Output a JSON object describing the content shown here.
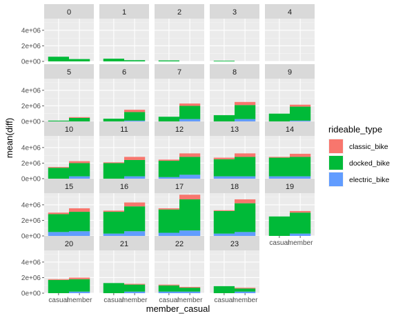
{
  "chart_data": {
    "type": "bar",
    "facet_by": "hour",
    "xlabel": "member_casual",
    "ylabel": "mean(diff)",
    "categories": [
      "casual",
      "member"
    ],
    "y_ticks": [
      0,
      2000000,
      4000000
    ],
    "y_tick_labels": [
      "0e+00",
      "2e+06",
      "4e+06"
    ],
    "ylim": [
      0,
      5500000
    ],
    "legend": {
      "title": "rideable_type",
      "position": "right",
      "items": [
        {
          "key": "classic_bike",
          "label": "classic_bike",
          "color": "#F8766D"
        },
        {
          "key": "docked_bike",
          "label": "docked_bike",
          "color": "#00BA38"
        },
        {
          "key": "electric_bike",
          "label": "electric_bike",
          "color": "#619CFF"
        }
      ]
    },
    "stack_order_bottom_to_top": [
      "electric_bike",
      "docked_bike",
      "classic_bike"
    ],
    "panels": [
      {
        "label": "0",
        "bars": {
          "casual": {
            "electric_bike": 0,
            "docked_bike": 600000,
            "classic_bike": 0
          },
          "member": {
            "electric_bike": 0,
            "docked_bike": 300000,
            "classic_bike": 0
          }
        }
      },
      {
        "label": "1",
        "bars": {
          "casual": {
            "electric_bike": 0,
            "docked_bike": 350000,
            "classic_bike": 0
          },
          "member": {
            "electric_bike": 0,
            "docked_bike": 150000,
            "classic_bike": 0
          }
        }
      },
      {
        "label": "2",
        "bars": {
          "casual": {
            "electric_bike": 0,
            "docked_bike": 120000,
            "classic_bike": 0
          },
          "member": {
            "electric_bike": 0,
            "docked_bike": 0,
            "classic_bike": 0
          }
        }
      },
      {
        "label": "3",
        "bars": {
          "casual": {
            "electric_bike": 0,
            "docked_bike": 80000,
            "classic_bike": 0
          },
          "member": {
            "electric_bike": 0,
            "docked_bike": 0,
            "classic_bike": 0
          }
        }
      },
      {
        "label": "4",
        "bars": {
          "casual": {
            "electric_bike": 0,
            "docked_bike": 0,
            "classic_bike": 0
          },
          "member": {
            "electric_bike": 0,
            "docked_bike": 0,
            "classic_bike": 0
          }
        }
      },
      {
        "label": "5",
        "bars": {
          "casual": {
            "electric_bike": 0,
            "docked_bike": 100000,
            "classic_bike": 0
          },
          "member": {
            "electric_bike": 0,
            "docked_bike": 450000,
            "classic_bike": 100000
          }
        }
      },
      {
        "label": "6",
        "bars": {
          "casual": {
            "electric_bike": 0,
            "docked_bike": 350000,
            "classic_bike": 0
          },
          "member": {
            "electric_bike": 100000,
            "docked_bike": 1100000,
            "classic_bike": 300000
          }
        }
      },
      {
        "label": "7",
        "bars": {
          "casual": {
            "electric_bike": 0,
            "docked_bike": 600000,
            "classic_bike": 0
          },
          "member": {
            "electric_bike": 300000,
            "docked_bike": 1700000,
            "classic_bike": 300000
          }
        }
      },
      {
        "label": "8",
        "bars": {
          "casual": {
            "electric_bike": 0,
            "docked_bike": 800000,
            "classic_bike": 0
          },
          "member": {
            "electric_bike": 300000,
            "docked_bike": 1800000,
            "classic_bike": 400000
          }
        }
      },
      {
        "label": "9",
        "bars": {
          "casual": {
            "electric_bike": 0,
            "docked_bike": 1000000,
            "classic_bike": 0
          },
          "member": {
            "electric_bike": 100000,
            "docked_bike": 1800000,
            "classic_bike": 250000
          }
        }
      },
      {
        "label": "10",
        "bars": {
          "casual": {
            "electric_bike": 0,
            "docked_bike": 1400000,
            "classic_bike": 100000
          },
          "member": {
            "electric_bike": 300000,
            "docked_bike": 1700000,
            "classic_bike": 250000
          }
        }
      },
      {
        "label": "11",
        "bars": {
          "casual": {
            "electric_bike": 0,
            "docked_bike": 2000000,
            "classic_bike": 100000
          },
          "member": {
            "electric_bike": 300000,
            "docked_bike": 2100000,
            "classic_bike": 400000
          }
        }
      },
      {
        "label": "12",
        "bars": {
          "casual": {
            "electric_bike": 200000,
            "docked_bike": 2100000,
            "classic_bike": 150000
          },
          "member": {
            "electric_bike": 500000,
            "docked_bike": 2300000,
            "classic_bike": 450000
          }
        }
      },
      {
        "label": "13",
        "bars": {
          "casual": {
            "electric_bike": 300000,
            "docked_bike": 2200000,
            "classic_bike": 200000
          },
          "member": {
            "electric_bike": 300000,
            "docked_bike": 2500000,
            "classic_bike": 450000
          }
        }
      },
      {
        "label": "14",
        "bars": {
          "casual": {
            "electric_bike": 300000,
            "docked_bike": 2400000,
            "classic_bike": 100000
          },
          "member": {
            "electric_bike": 300000,
            "docked_bike": 2500000,
            "classic_bike": 400000
          }
        }
      },
      {
        "label": "15",
        "bars": {
          "casual": {
            "electric_bike": 500000,
            "docked_bike": 2300000,
            "classic_bike": 200000
          },
          "member": {
            "electric_bike": 600000,
            "docked_bike": 2500000,
            "classic_bike": 450000
          }
        }
      },
      {
        "label": "16",
        "bars": {
          "casual": {
            "electric_bike": 300000,
            "docked_bike": 2800000,
            "classic_bike": 150000
          },
          "member": {
            "electric_bike": 600000,
            "docked_bike": 3200000,
            "classic_bike": 500000
          }
        }
      },
      {
        "label": "17",
        "bars": {
          "casual": {
            "electric_bike": 400000,
            "docked_bike": 3000000,
            "classic_bike": 150000
          },
          "member": {
            "electric_bike": 700000,
            "docked_bike": 4000000,
            "classic_bike": 600000
          }
        }
      },
      {
        "label": "18",
        "bars": {
          "casual": {
            "electric_bike": 300000,
            "docked_bike": 2900000,
            "classic_bike": 100000
          },
          "member": {
            "electric_bike": 500000,
            "docked_bike": 3700000,
            "classic_bike": 500000
          }
        }
      },
      {
        "label": "19",
        "bars": {
          "casual": {
            "electric_bike": 0,
            "docked_bike": 2500000,
            "classic_bike": 0
          },
          "member": {
            "electric_bike": 300000,
            "docked_bike": 2700000,
            "classic_bike": 200000
          }
        }
      },
      {
        "label": "20",
        "bars": {
          "casual": {
            "electric_bike": 0,
            "docked_bike": 1700000,
            "classic_bike": 100000
          },
          "member": {
            "electric_bike": 200000,
            "docked_bike": 1600000,
            "classic_bike": 200000
          }
        }
      },
      {
        "label": "21",
        "bars": {
          "casual": {
            "electric_bike": 0,
            "docked_bike": 1300000,
            "classic_bike": 0
          },
          "member": {
            "electric_bike": 200000,
            "docked_bike": 900000,
            "classic_bike": 100000
          }
        }
      },
      {
        "label": "22",
        "bars": {
          "casual": {
            "electric_bike": 200000,
            "docked_bike": 800000,
            "classic_bike": 100000
          },
          "member": {
            "electric_bike": 200000,
            "docked_bike": 500000,
            "classic_bike": 100000
          }
        }
      },
      {
        "label": "23",
        "bars": {
          "casual": {
            "electric_bike": 0,
            "docked_bike": 900000,
            "classic_bike": 0
          },
          "member": {
            "electric_bike": 200000,
            "docked_bike": 400000,
            "classic_bike": 100000
          }
        }
      }
    ],
    "grid": true,
    "x_tick_panels": [
      "19",
      "20",
      "21",
      "22",
      "23"
    ],
    "y_tick_rows": [
      0,
      1,
      2,
      3,
      4
    ]
  }
}
